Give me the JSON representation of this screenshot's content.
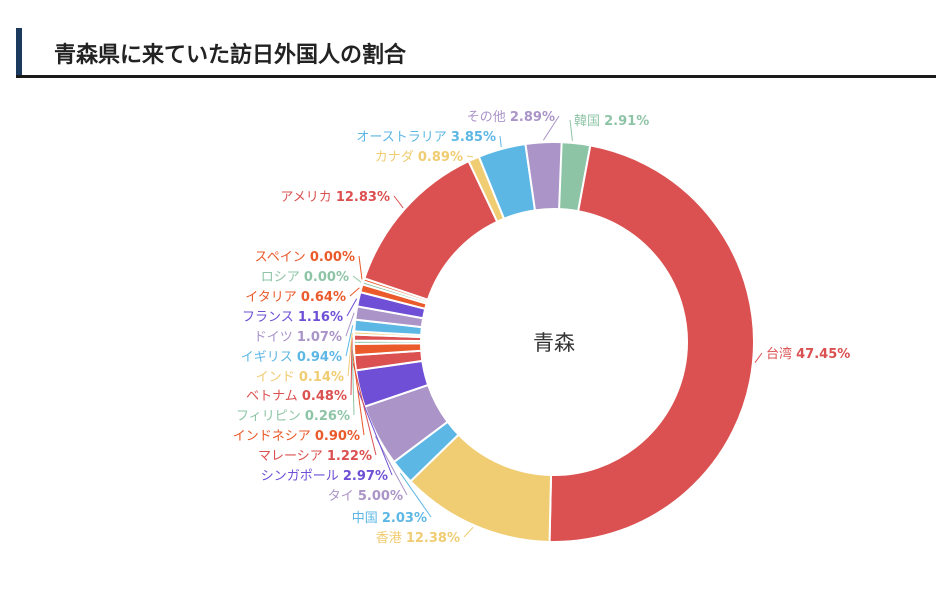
{
  "page": {
    "title": "青森県に来ていた訪日外国人の割合"
  },
  "chart_data": {
    "type": "pie",
    "variant": "donut",
    "center_label": "青森",
    "legend": "labels-outside",
    "slices": [
      {
        "label": "韓国",
        "value": 2.91,
        "value_text": "2.91%",
        "color": "#8ec4a6"
      },
      {
        "label": "台湾",
        "value": 47.45,
        "value_text": "47.45%",
        "color": "#db5050"
      },
      {
        "label": "香港",
        "value": 12.38,
        "value_text": "12.38%",
        "color": "#f0cc73"
      },
      {
        "label": "中国",
        "value": 2.03,
        "value_text": "2.03%",
        "color": "#5db7e5"
      },
      {
        "label": "タイ",
        "value": 5.0,
        "value_text": "5.00%",
        "color": "#aa94c8"
      },
      {
        "label": "シンガポール",
        "value": 2.97,
        "value_text": "2.97%",
        "color": "#6e4fd6"
      },
      {
        "label": "マレーシア",
        "value": 1.22,
        "value_text": "1.22%",
        "color": "#db5050"
      },
      {
        "label": "インドネシア",
        "value": 0.9,
        "value_text": "0.90%",
        "color": "#ea5a2a"
      },
      {
        "label": "フィリピン",
        "value": 0.26,
        "value_text": "0.26%",
        "color": "#8ec4a6"
      },
      {
        "label": "ベトナム",
        "value": 0.48,
        "value_text": "0.48%",
        "color": "#db5050"
      },
      {
        "label": "インド",
        "value": 0.14,
        "value_text": "0.14%",
        "color": "#f0cc73"
      },
      {
        "label": "イギリス",
        "value": 0.94,
        "value_text": "0.94%",
        "color": "#5db7e5"
      },
      {
        "label": "ドイツ",
        "value": 1.07,
        "value_text": "1.07%",
        "color": "#aa94c8"
      },
      {
        "label": "フランス",
        "value": 1.16,
        "value_text": "1.16%",
        "color": "#6e4fd6"
      },
      {
        "label": "イタリア",
        "value": 0.64,
        "value_text": "0.64%",
        "color": "#ea5a2a"
      },
      {
        "label": "ロシア",
        "value": 0.0,
        "value_text": "0.00%",
        "color": "#8ec4a6"
      },
      {
        "label": "スペイン",
        "value": 0.0,
        "value_text": "0.00%",
        "color": "#ea5a2a"
      },
      {
        "label": "アメリカ",
        "value": 12.83,
        "value_text": "12.83%",
        "color": "#db5050"
      },
      {
        "label": "カナダ",
        "value": 0.89,
        "value_text": "0.89%",
        "color": "#f0cc73"
      },
      {
        "label": "オーストラリア",
        "value": 3.85,
        "value_text": "3.85%",
        "color": "#5db7e5"
      },
      {
        "label": "その他",
        "value": 2.89,
        "value_text": "2.89%",
        "color": "#aa94c8"
      }
    ]
  }
}
